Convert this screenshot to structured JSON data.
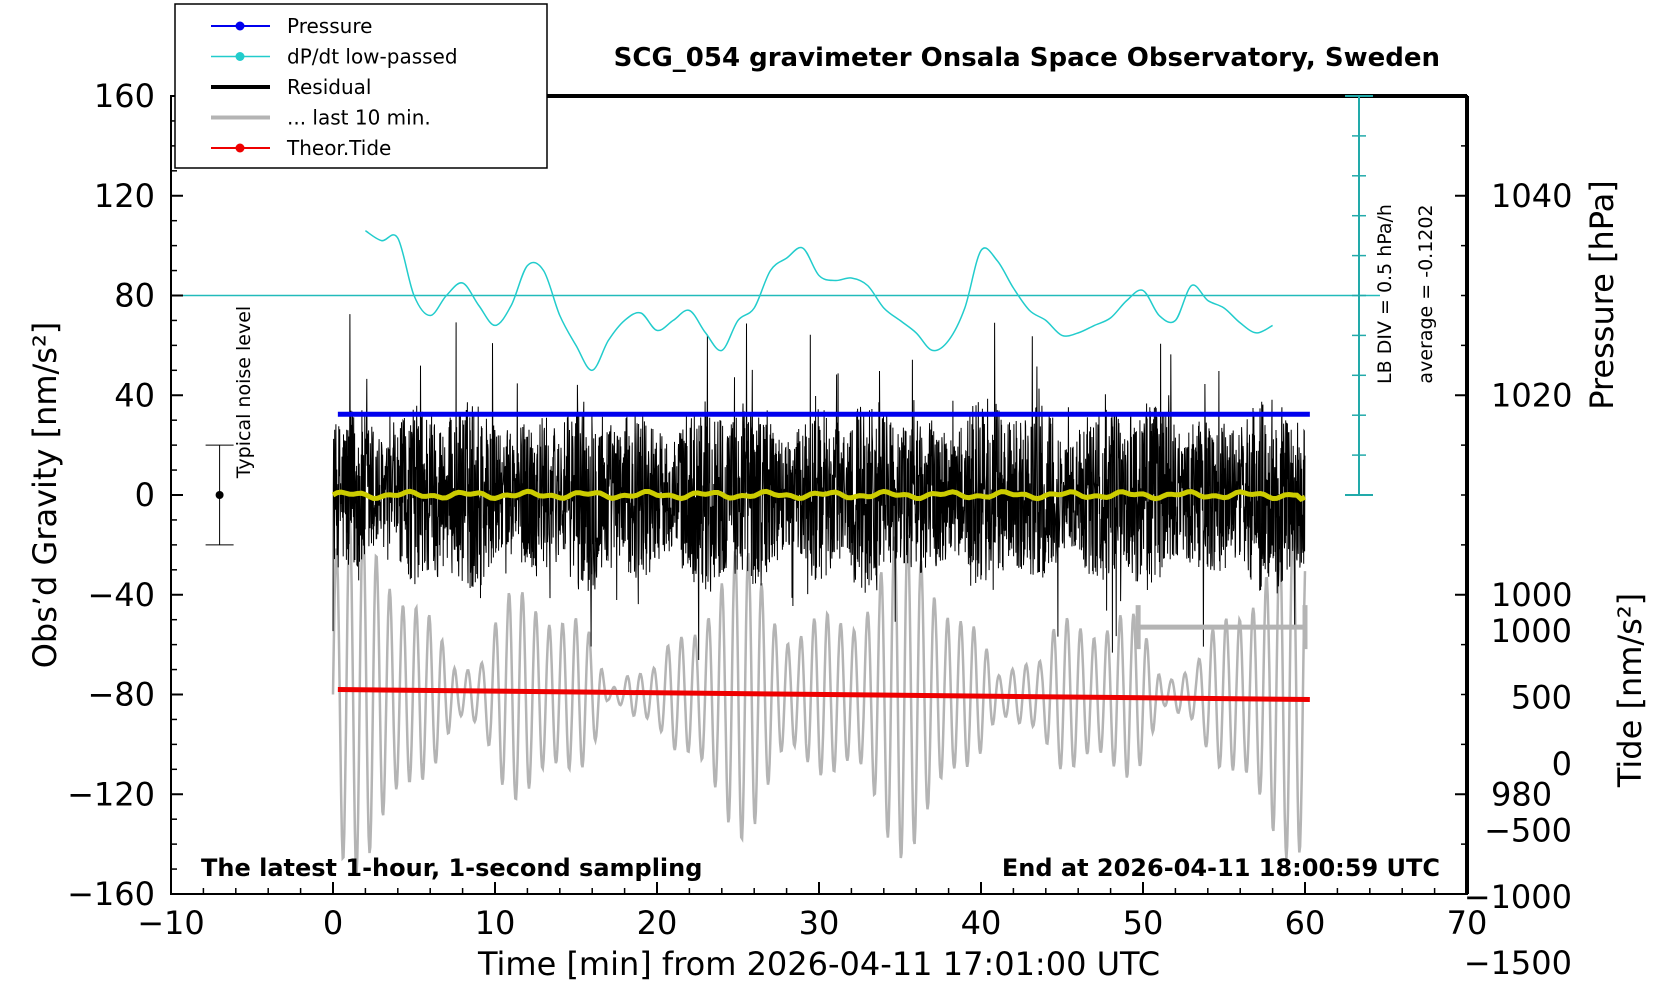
{
  "chart_data": {
    "type": "line",
    "title": "SCG_054 gravimeter Onsala Space Observatory, Sweden",
    "xlabel": "Time [min] from 2026-04-11 17:01:00 UTC",
    "ylabel_left": "Obs’d Gravity [nm/s²]",
    "ylabel_right_pressure": "Pressure [hPa]",
    "ylabel_right_tide": "Tide [nm/s²]",
    "xlim": [
      -10,
      70
    ],
    "ylim": [
      -160,
      160
    ],
    "pressure_lim": [
      970,
      1050
    ],
    "tide_lim": [
      -1500,
      1500
    ],
    "x_ticks": [
      -10,
      0,
      10,
      20,
      30,
      40,
      50,
      60,
      70
    ],
    "x_tick_labels": [
      "−10",
      "0",
      "10",
      "20",
      "30",
      "40",
      "50",
      "60",
      "70"
    ],
    "y_ticks": [
      160,
      120,
      80,
      40,
      0,
      -40,
      -80,
      -120,
      -160
    ],
    "y_tick_labels": [
      "160",
      "120",
      "80",
      "40",
      "0",
      "−40",
      "−80",
      "−120",
      "−160"
    ],
    "pressure_ticks": [
      1040,
      1020,
      1000,
      980
    ],
    "pressure_tick_labels": [
      "1040",
      "1020",
      "1000",
      "980"
    ],
    "tide_ticks": [
      1000,
      500,
      0,
      -500,
      -1000,
      -1500
    ],
    "tide_tick_labels": [
      "1000",
      "500",
      "0",
      "−500",
      "−1000",
      "−1500"
    ],
    "legend": [
      {
        "label": "Pressure",
        "color": "#0000ee",
        "marker": true,
        "width": 2
      },
      {
        "label": "dP/dt low-passed",
        "color": "#22cccc",
        "marker": true,
        "width": 1.5
      },
      {
        "label": "Residual",
        "color": "#000000",
        "marker": false,
        "width": 4
      },
      {
        "label": "... last 10 min.",
        "color": "#b4b4b4",
        "marker": false,
        "width": 4
      },
      {
        "label": "Theor.Tide",
        "color": "#ee0000",
        "marker": true,
        "width": 2
      }
    ],
    "annotations": {
      "bottom_left": "The latest 1-hour, 1-second sampling",
      "bottom_right": "End at 2026-04-11 18:00:59 UTC",
      "noise_label": "Typical noise level",
      "lb_div": "LB DIV = 0.5 hPa/h",
      "average": "average = -0.1202"
    },
    "noise_bar": {
      "x": -7,
      "y": 0,
      "low": -20,
      "high": 20
    },
    "dpdt_zero_level": 80,
    "dpdt_scale_top": 160,
    "dpdt_scale_bottom": 0,
    "series": {
      "pressure": {
        "x0": 0.3,
        "x1": 60.3,
        "y0": 1018.1,
        "y1": 1018.1
      },
      "tide": {
        "x0": 0.3,
        "x1": 60.3,
        "y0": -78,
        "y1": -82
      },
      "dpdt": {
        "x": [
          2,
          3,
          4,
          5,
          6,
          7,
          8,
          9,
          10,
          11,
          12,
          13,
          14,
          15,
          16,
          17,
          18,
          19,
          20,
          21,
          22,
          23,
          24,
          25,
          26,
          27,
          28,
          29,
          30,
          31,
          32,
          33,
          34,
          35,
          36,
          37,
          38,
          39,
          40,
          41,
          42,
          43,
          44,
          45,
          46,
          47,
          48,
          49,
          50,
          51,
          52,
          53,
          54,
          55,
          56,
          57,
          58
        ],
        "y": [
          106,
          102,
          103,
          80,
          72,
          80,
          85,
          76,
          68,
          76,
          92,
          90,
          72,
          60,
          50,
          62,
          70,
          73,
          66,
          70,
          74,
          65,
          58,
          70,
          75,
          90,
          95,
          99,
          88,
          86,
          87,
          84,
          75,
          70,
          65,
          58,
          62,
          75,
          98,
          94,
          83,
          74,
          70,
          64,
          65,
          68,
          71,
          78,
          82,
          72,
          70,
          84,
          78,
          75,
          69,
          65,
          68
        ]
      },
      "residual": {
        "x_start": 0,
        "x_end": 60
      },
      "residual_mean": {
        "x_start": 0,
        "x_end": 60
      },
      "last10": {
        "x_start": 0,
        "x_end": 60,
        "bracket_x": [
          49.7,
          60
        ],
        "bracket_y": -53
      }
    }
  }
}
